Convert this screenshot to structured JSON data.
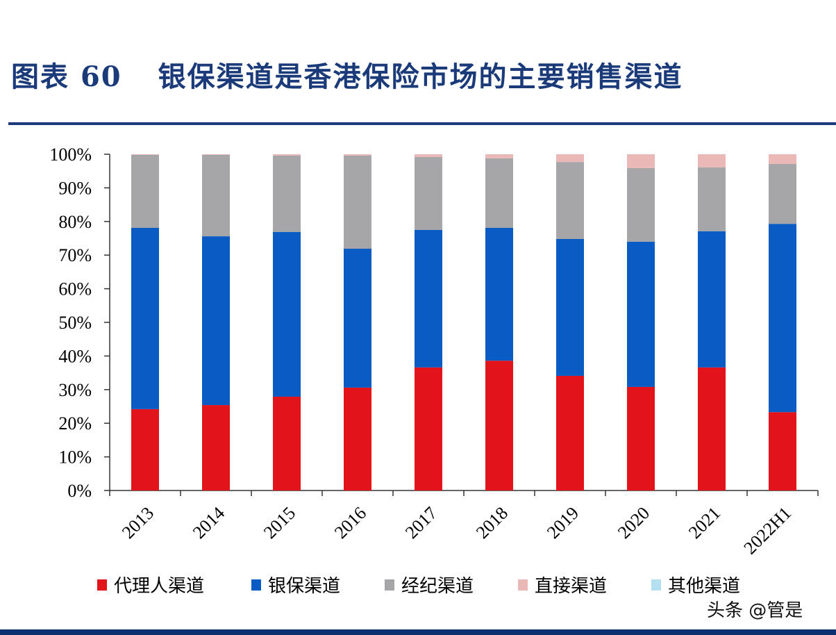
{
  "title": {
    "label": "图表",
    "number": "60",
    "text": "银保渠道是香港保险市场的主要销售渠道"
  },
  "watermark": "头条 @管是",
  "chart_data": {
    "type": "bar",
    "stacked": true,
    "categories": [
      "2013",
      "2014",
      "2015",
      "2016",
      "2017",
      "2018",
      "2019",
      "2020",
      "2021",
      "2022H1"
    ],
    "series": [
      {
        "name": "代理人渠道",
        "color": "#e3131b",
        "values": [
          24.2,
          25.4,
          27.9,
          30.6,
          36.6,
          38.6,
          34.1,
          30.8,
          36.6,
          23.3
        ]
      },
      {
        "name": "银保渠道",
        "color": "#0a5bc4",
        "values": [
          53.9,
          50.2,
          49.0,
          41.3,
          40.9,
          39.5,
          40.7,
          43.2,
          40.5,
          56.0
        ]
      },
      {
        "name": "经纪渠道",
        "color": "#a6a6a8",
        "values": [
          21.7,
          24.2,
          22.7,
          27.7,
          21.7,
          20.7,
          22.9,
          21.9,
          19.0,
          17.8
        ]
      },
      {
        "name": "直接渠道",
        "color": "#ebb8b8",
        "values": [
          0.2,
          0.2,
          0.4,
          0.4,
          0.8,
          1.2,
          2.3,
          4.1,
          3.9,
          2.9
        ]
      },
      {
        "name": "其他渠道",
        "color": "#b3dff0",
        "values": [
          0,
          0,
          0,
          0,
          0,
          0,
          0,
          0,
          0,
          0
        ]
      }
    ],
    "yticks": [
      "0%",
      "10%",
      "20%",
      "30%",
      "40%",
      "50%",
      "60%",
      "70%",
      "80%",
      "90%",
      "100%"
    ],
    "ylim": [
      0,
      100
    ],
    "grid": false,
    "legend_position": "bottom"
  }
}
